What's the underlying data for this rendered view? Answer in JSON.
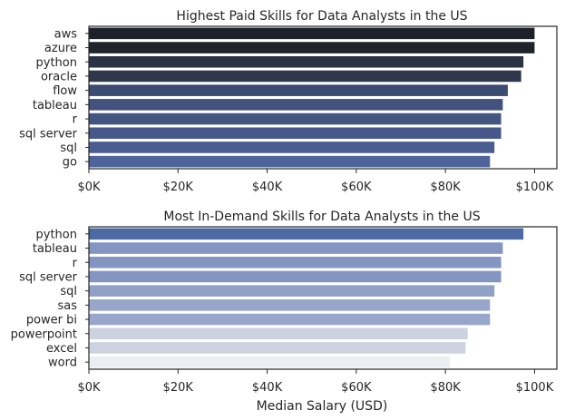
{
  "chart_data": [
    {
      "type": "bar",
      "orientation": "horizontal",
      "title": "Highest Paid Skills for Data Analysts in the US",
      "xlabel": "",
      "ylabel": "",
      "categories": [
        "aws",
        "azure",
        "python",
        "oracle",
        "flow",
        "tableau",
        "r",
        "sql server",
        "sql",
        "go"
      ],
      "values": [
        100000,
        100000,
        97500,
        97000,
        94000,
        92875,
        92500,
        92500,
        91000,
        90000
      ],
      "xlim": [
        0,
        105000
      ],
      "xticks": [
        0,
        20000,
        40000,
        60000,
        80000,
        100000
      ],
      "xtick_labels": [
        "$0K",
        "$20K",
        "$40K",
        "$60K",
        "$80K",
        "$100K"
      ],
      "colors": [
        "#1e2129",
        "#202329",
        "#2a3245",
        "#2e374c",
        "#3c4b72",
        "#42527d",
        "#445582",
        "#46588a",
        "#4a5d90",
        "#4e649a"
      ],
      "grid": false
    },
    {
      "type": "bar",
      "orientation": "horizontal",
      "title": "Most In-Demand Skills for Data Analysts in the US",
      "xlabel": "Median Salary (USD)",
      "ylabel": "",
      "categories": [
        "python",
        "tableau",
        "r",
        "sql server",
        "sql",
        "sas",
        "power bi",
        "powerpoint",
        "excel",
        "word"
      ],
      "values": [
        97500,
        92875,
        92500,
        92500,
        91000,
        90000,
        90000,
        85000,
        84500,
        81000
      ],
      "xlim": [
        0,
        105000
      ],
      "xticks": [
        0,
        20000,
        40000,
        60000,
        80000,
        100000
      ],
      "xtick_labels": [
        "$0K",
        "$20K",
        "$40K",
        "$60K",
        "$80K",
        "$100K"
      ],
      "colors": [
        "#4c6aa4",
        "#8395c0",
        "#8395c0",
        "#8395c0",
        "#90a0c6",
        "#97a7c9",
        "#97a7c9",
        "#ccd2e0",
        "#ccd2e0",
        "#eceef2"
      ],
      "grid": false
    }
  ]
}
